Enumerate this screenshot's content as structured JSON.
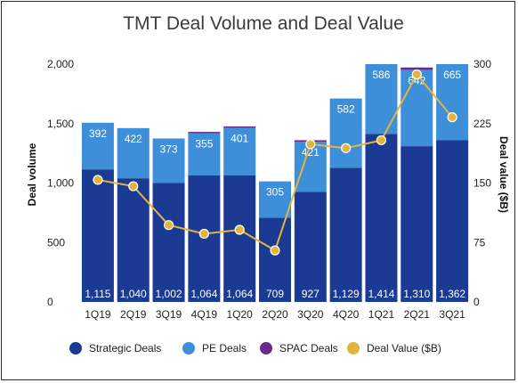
{
  "chart_data": {
    "type": "bar",
    "title": "TMT Deal Volume and Deal Value",
    "categories": [
      "1Q19",
      "2Q19",
      "3Q19",
      "4Q19",
      "1Q20",
      "2Q20",
      "3Q20",
      "4Q20",
      "1Q21",
      "2Q21",
      "3Q21"
    ],
    "series": [
      {
        "name": "Strategic Deals",
        "type": "bar",
        "stack": "volume",
        "axis": "left",
        "values": [
          1115,
          1040,
          1002,
          1064,
          1064,
          709,
          927,
          1129,
          1414,
          1310,
          1362
        ]
      },
      {
        "name": "PE Deals",
        "type": "bar",
        "stack": "volume",
        "axis": "left",
        "values": [
          392,
          422,
          373,
          355,
          401,
          305,
          421,
          582,
          586,
          642,
          665
        ]
      },
      {
        "name": "SPAC Deals",
        "type": "bar",
        "stack": "volume",
        "axis": "left",
        "values": [
          0,
          0,
          0,
          10,
          6,
          0,
          12,
          0,
          0,
          20,
          0
        ]
      },
      {
        "name": "Deal Value ($B)",
        "type": "line",
        "axis": "right",
        "values": [
          154,
          146,
          97,
          86,
          91,
          65,
          199,
          194,
          204,
          287,
          233
        ]
      }
    ],
    "ylabel": "Deal volume",
    "y2label": "Deal value ($B)",
    "ylim": [
      0,
      2000
    ],
    "y2lim": [
      0,
      300
    ],
    "yticks": [
      "0",
      "500",
      "1,000",
      "1,500",
      "2,000"
    ],
    "y2ticks": [
      "0",
      "75",
      "150",
      "225",
      "300"
    ],
    "strategic_labels": [
      "1,115",
      "1,040",
      "1,002",
      "1,064",
      "1,064",
      "709",
      "927",
      "1,129",
      "1,414",
      "1,310",
      "1,362"
    ],
    "pe_labels": [
      "392",
      "422",
      "373",
      "355",
      "401",
      "305",
      "421",
      "582",
      "586",
      "642",
      "665"
    ],
    "colors": {
      "strategic": "#1b3a94",
      "pe": "#3d8fd9",
      "spac": "#6a2a8a",
      "line": "#e2b53f"
    },
    "legend_position": "bottom",
    "grid": false
  }
}
